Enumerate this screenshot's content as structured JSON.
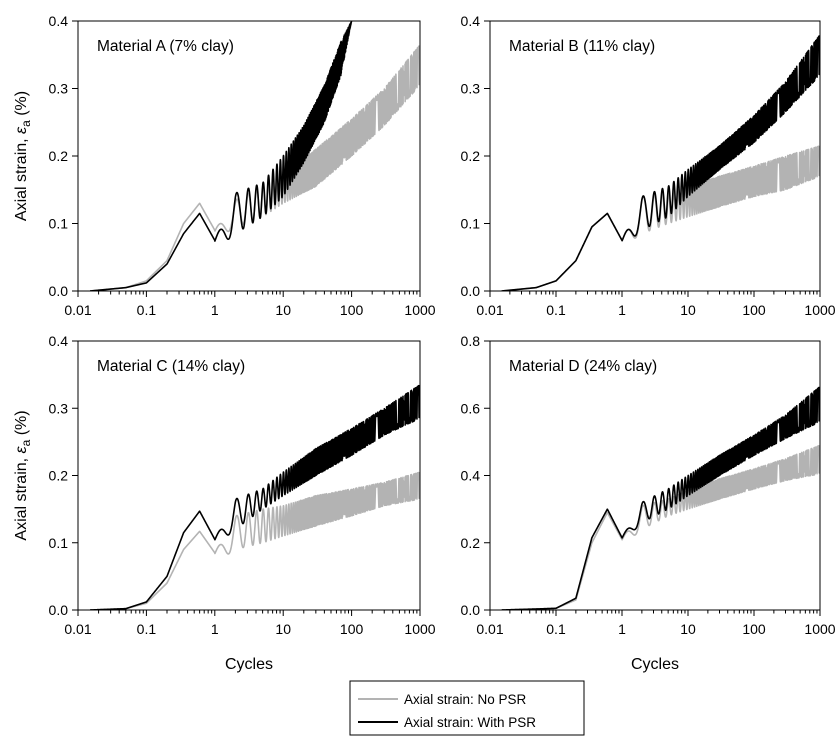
{
  "chart_data": [
    {
      "type": "line",
      "title": "Material A (7% clay)",
      "xlabel": "",
      "ylabel": "Axial strain, εa (%)",
      "x_scale": "log",
      "xlim": [
        0.01,
        1000
      ],
      "ylim": [
        0,
        0.4
      ],
      "x_ticks": [
        "0.01",
        "0.1",
        "1",
        "10",
        "100",
        "1000"
      ],
      "y_ticks": [
        "0.0",
        "0.1",
        "0.2",
        "0.3",
        "0.4"
      ],
      "series": [
        {
          "name": "Axial strain: No PSR",
          "color": "#b3b3b3",
          "x": [
            0.015,
            0.05,
            0.1,
            0.2,
            0.35,
            0.6,
            1,
            2,
            5,
            10,
            30,
            100,
            300,
            1000
          ],
          "y_lower": [
            0.0,
            0.005,
            0.015,
            0.045,
            0.1,
            0.125,
            0.075,
            0.095,
            0.11,
            0.13,
            0.155,
            0.2,
            0.245,
            0.305
          ],
          "y_upper": [
            0.0,
            0.005,
            0.015,
            0.045,
            0.1,
            0.13,
            0.09,
            0.135,
            0.155,
            0.175,
            0.21,
            0.255,
            0.3,
            0.365
          ]
        },
        {
          "name": "Axial strain: With PSR",
          "color": "#000000",
          "x": [
            0.015,
            0.05,
            0.1,
            0.2,
            0.35,
            0.6,
            1,
            2,
            5,
            10,
            20,
            40,
            70,
            100
          ],
          "y_lower": [
            0.0,
            0.005,
            0.012,
            0.04,
            0.085,
            0.112,
            0.06,
            0.085,
            0.11,
            0.14,
            0.19,
            0.25,
            0.32,
            0.4
          ],
          "y_upper": [
            0.0,
            0.005,
            0.012,
            0.04,
            0.085,
            0.115,
            0.075,
            0.145,
            0.16,
            0.2,
            0.245,
            0.305,
            0.37,
            0.4
          ]
        }
      ]
    },
    {
      "type": "line",
      "title": "Material B (11% clay)",
      "xlabel": "",
      "ylabel": "",
      "x_scale": "log",
      "xlim": [
        0.01,
        1000
      ],
      "ylim": [
        0,
        0.4
      ],
      "x_ticks": [
        "0.01",
        "0.1",
        "1",
        "10",
        "100",
        "1000"
      ],
      "y_ticks": [
        "0.0",
        "0.1",
        "0.2",
        "0.3",
        "0.4"
      ],
      "series": [
        {
          "name": "Axial strain: No PSR",
          "color": "#b3b3b3",
          "x": [
            0.015,
            0.05,
            0.1,
            0.2,
            0.35,
            0.6,
            1,
            2,
            5,
            10,
            30,
            100,
            300,
            1000
          ],
          "y_lower": [
            0.0,
            0.005,
            0.015,
            0.045,
            0.095,
            0.112,
            0.065,
            0.085,
            0.1,
            0.11,
            0.125,
            0.14,
            0.15,
            0.17
          ],
          "y_upper": [
            0.0,
            0.005,
            0.015,
            0.045,
            0.095,
            0.115,
            0.075,
            0.14,
            0.145,
            0.155,
            0.17,
            0.185,
            0.2,
            0.215
          ]
        },
        {
          "name": "Axial strain: With PSR",
          "color": "#000000",
          "x": [
            0.015,
            0.05,
            0.1,
            0.2,
            0.35,
            0.6,
            1,
            2,
            5,
            10,
            30,
            100,
            300,
            1000
          ],
          "y_lower": [
            0.0,
            0.005,
            0.015,
            0.045,
            0.095,
            0.112,
            0.065,
            0.09,
            0.11,
            0.14,
            0.18,
            0.22,
            0.265,
            0.32
          ],
          "y_upper": [
            0.0,
            0.005,
            0.015,
            0.045,
            0.095,
            0.115,
            0.075,
            0.14,
            0.155,
            0.18,
            0.215,
            0.26,
            0.31,
            0.38
          ]
        }
      ]
    },
    {
      "type": "line",
      "title": "Material C (14% clay)",
      "xlabel": "Cycles",
      "ylabel": "Axial strain, εa (%)",
      "x_scale": "log",
      "xlim": [
        0.01,
        1000
      ],
      "ylim": [
        0,
        0.4
      ],
      "x_ticks": [
        "0.01",
        "0.1",
        "1",
        "10",
        "100",
        "1000"
      ],
      "y_ticks": [
        "0.0",
        "0.1",
        "0.2",
        "0.3",
        "0.4"
      ],
      "series": [
        {
          "name": "Axial strain: No PSR",
          "color": "#b3b3b3",
          "x": [
            0.015,
            0.05,
            0.1,
            0.2,
            0.35,
            0.6,
            1,
            2,
            5,
            10,
            30,
            100,
            300,
            1000
          ],
          "y_lower": [
            0.0,
            0.002,
            0.01,
            0.04,
            0.09,
            0.115,
            0.07,
            0.09,
            0.1,
            0.11,
            0.125,
            0.14,
            0.155,
            0.165
          ],
          "y_upper": [
            0.0,
            0.002,
            0.01,
            0.04,
            0.09,
            0.117,
            0.085,
            0.14,
            0.15,
            0.155,
            0.17,
            0.18,
            0.19,
            0.205
          ]
        },
        {
          "name": "Axial strain: With PSR",
          "color": "#000000",
          "x": [
            0.015,
            0.05,
            0.1,
            0.2,
            0.35,
            0.6,
            1,
            2,
            5,
            10,
            30,
            100,
            300,
            1000
          ],
          "y_lower": [
            0.0,
            0.002,
            0.012,
            0.05,
            0.115,
            0.145,
            0.095,
            0.12,
            0.15,
            0.17,
            0.2,
            0.23,
            0.26,
            0.285
          ],
          "y_upper": [
            0.0,
            0.002,
            0.012,
            0.05,
            0.115,
            0.147,
            0.105,
            0.165,
            0.18,
            0.205,
            0.24,
            0.27,
            0.3,
            0.335
          ]
        }
      ]
    },
    {
      "type": "line",
      "title": "Material D (24% clay)",
      "xlabel": "Cycles",
      "ylabel": "",
      "x_scale": "log",
      "xlim": [
        0.01,
        1000
      ],
      "ylim": [
        0,
        0.8
      ],
      "x_ticks": [
        "0.01",
        "0.1",
        "1",
        "10",
        "100",
        "1000"
      ],
      "y_ticks": [
        "0.0",
        "0.2",
        "0.4",
        "0.6",
        "0.8"
      ],
      "series": [
        {
          "name": "Axial strain: No PSR",
          "color": "#b3b3b3",
          "x": [
            0.015,
            0.05,
            0.1,
            0.2,
            0.35,
            0.6,
            1,
            2,
            5,
            10,
            30,
            100,
            300,
            1000
          ],
          "y_lower": [
            0.0,
            0.003,
            0.005,
            0.03,
            0.2,
            0.285,
            0.19,
            0.24,
            0.28,
            0.3,
            0.33,
            0.36,
            0.385,
            0.405
          ],
          "y_upper": [
            0.0,
            0.003,
            0.005,
            0.03,
            0.2,
            0.29,
            0.21,
            0.31,
            0.33,
            0.355,
            0.39,
            0.42,
            0.45,
            0.49
          ]
        },
        {
          "name": "Axial strain: With PSR",
          "color": "#000000",
          "x": [
            0.015,
            0.05,
            0.1,
            0.2,
            0.35,
            0.6,
            1,
            2,
            5,
            10,
            30,
            100,
            300,
            1000
          ],
          "y_lower": [
            0.0,
            0.003,
            0.005,
            0.035,
            0.215,
            0.295,
            0.2,
            0.26,
            0.3,
            0.34,
            0.4,
            0.46,
            0.51,
            0.56
          ],
          "y_upper": [
            0.0,
            0.003,
            0.005,
            0.035,
            0.215,
            0.3,
            0.215,
            0.32,
            0.36,
            0.4,
            0.46,
            0.52,
            0.58,
            0.665
          ]
        }
      ]
    }
  ],
  "legend": {
    "position": "bottom-center",
    "entries": [
      {
        "label": "Axial strain: No PSR",
        "color": "#b3b3b3"
      },
      {
        "label": "Axial strain: With PSR",
        "color": "#000000"
      }
    ]
  }
}
